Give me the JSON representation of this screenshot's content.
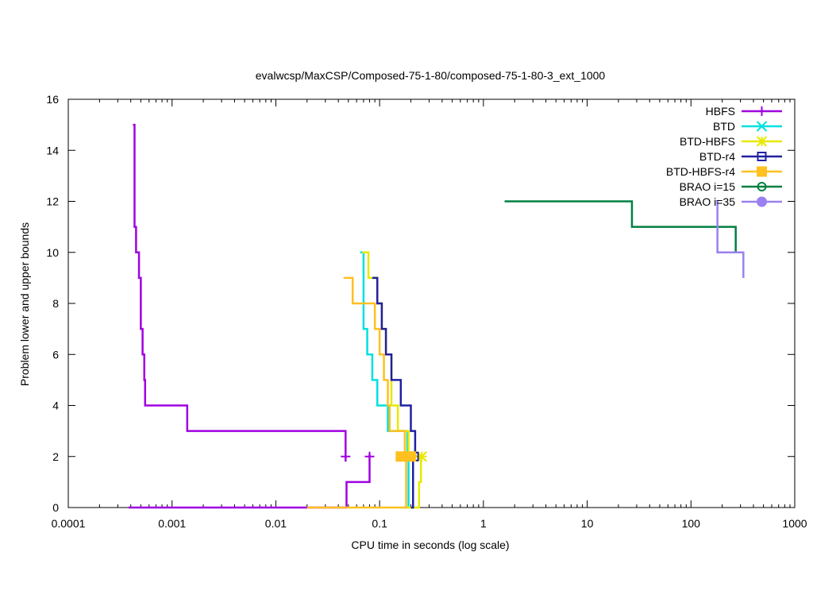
{
  "chart_data": {
    "type": "line",
    "title": "evalwcsp/MaxCSP/Composed-75-1-80/composed-75-1-80-3_ext_1000",
    "xlabel": "CPU time in seconds (log scale)",
    "ylabel": "Problem lower and upper bounds",
    "xscale": "log",
    "xlim": [
      0.0001,
      1000
    ],
    "ylim": [
      0,
      16
    ],
    "x_ticks": [
      {
        "value": 0.0001,
        "label": "0.0001"
      },
      {
        "value": 0.001,
        "label": "0.001"
      },
      {
        "value": 0.01,
        "label": "0.01"
      },
      {
        "value": 0.1,
        "label": "0.1"
      },
      {
        "value": 1,
        "label": "1"
      },
      {
        "value": 10,
        "label": "10"
      },
      {
        "value": 100,
        "label": "100"
      },
      {
        "value": 1000,
        "label": "1000"
      }
    ],
    "y_ticks": [
      {
        "value": 0,
        "label": "0"
      },
      {
        "value": 2,
        "label": "2"
      },
      {
        "value": 4,
        "label": "4"
      },
      {
        "value": 6,
        "label": "6"
      },
      {
        "value": 8,
        "label": "8"
      },
      {
        "value": 10,
        "label": "10"
      },
      {
        "value": 12,
        "label": "12"
      },
      {
        "value": 14,
        "label": "14"
      },
      {
        "value": 16,
        "label": "16"
      }
    ],
    "grid": false,
    "legend_position": "top-right",
    "series": [
      {
        "name": "HBFS",
        "color": "#a000e0",
        "marker": "plus",
        "upper": [
          [
            0.00042,
            15
          ],
          [
            0.000435,
            11
          ],
          [
            0.00045,
            10
          ],
          [
            0.00048,
            9
          ],
          [
            0.0005,
            7
          ],
          [
            0.00052,
            6
          ],
          [
            0.00054,
            5
          ],
          [
            0.00055,
            4
          ],
          [
            0.0014,
            3
          ],
          [
            0.047,
            2
          ],
          [
            0.047,
            1.8
          ]
        ],
        "lower": [
          [
            0.00038,
            0
          ],
          [
            0.048,
            0
          ],
          [
            0.048,
            1
          ],
          [
            0.08,
            1
          ],
          [
            0.08,
            2.1
          ]
        ],
        "points": [
          [
            0.047,
            2
          ],
          [
            0.08,
            2
          ]
        ]
      },
      {
        "name": "BTD",
        "color": "#00e0e0",
        "marker": "x",
        "upper": [
          [
            0.065,
            10
          ],
          [
            0.07,
            7
          ],
          [
            0.076,
            6
          ],
          [
            0.085,
            5
          ],
          [
            0.095,
            4
          ],
          [
            0.12,
            3
          ],
          [
            0.185,
            2
          ],
          [
            0.2,
            1.8
          ]
        ],
        "lower": [
          [
            0.17,
            0
          ],
          [
            0.19,
            2
          ]
        ],
        "points": [
          [
            0.195,
            2
          ]
        ]
      },
      {
        "name": "BTD-HBFS",
        "color": "#e8e800",
        "marker": "star",
        "upper": [
          [
            0.068,
            10
          ],
          [
            0.078,
            9
          ],
          [
            0.095,
            8
          ],
          [
            0.105,
            7
          ],
          [
            0.115,
            6
          ],
          [
            0.13,
            4
          ],
          [
            0.15,
            3
          ],
          [
            0.19,
            2
          ],
          [
            0.26,
            2
          ]
        ],
        "lower": [
          [
            0.18,
            0
          ],
          [
            0.24,
            1
          ],
          [
            0.25,
            2
          ]
        ],
        "points": [
          [
            0.255,
            2
          ]
        ]
      },
      {
        "name": "BTD-r4",
        "color": "#2020a0",
        "marker": "square",
        "upper": [
          [
            0.085,
            9
          ],
          [
            0.095,
            8
          ],
          [
            0.105,
            7
          ],
          [
            0.115,
            6
          ],
          [
            0.13,
            5
          ],
          [
            0.16,
            4
          ],
          [
            0.2,
            3
          ],
          [
            0.22,
            2
          ]
        ],
        "lower": [
          [
            0.2,
            0
          ],
          [
            0.21,
            2
          ]
        ],
        "points": [
          [
            0.215,
            2
          ]
        ]
      },
      {
        "name": "BTD-HBFS-r4",
        "color": "#ffc020",
        "marker": "filled-square",
        "upper": [
          [
            0.045,
            9
          ],
          [
            0.055,
            8
          ],
          [
            0.09,
            7
          ],
          [
            0.1,
            6
          ],
          [
            0.11,
            5
          ],
          [
            0.12,
            4
          ],
          [
            0.125,
            3
          ],
          [
            0.175,
            2
          ],
          [
            0.16,
            2
          ]
        ],
        "lower": [
          [
            0.02,
            0
          ],
          [
            0.175,
            0
          ],
          [
            0.18,
            1
          ],
          [
            0.18,
            2
          ]
        ],
        "points": [
          [
            0.16,
            2
          ],
          [
            0.2,
            2
          ]
        ]
      },
      {
        "name": "BRAO i=15",
        "color": "#008040",
        "marker": "circle",
        "upper": [
          [
            1.6,
            12
          ],
          [
            27,
            12
          ],
          [
            27,
            11
          ],
          [
            270,
            11
          ],
          [
            270,
            10
          ]
        ],
        "lower": [],
        "points": []
      },
      {
        "name": "BRAO i=35",
        "color": "#9a80f0",
        "marker": "filled-circle",
        "upper": [
          [
            175,
            12
          ],
          [
            180,
            10
          ],
          [
            320,
            10
          ],
          [
            320,
            9
          ]
        ],
        "lower": [],
        "points": []
      }
    ]
  }
}
